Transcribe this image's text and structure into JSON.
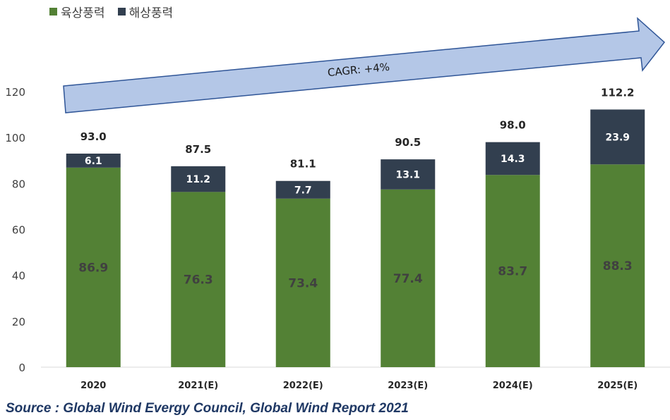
{
  "chart_data": {
    "type": "bar",
    "stacked": true,
    "categories": [
      "2020",
      "2021(E)",
      "2022(E)",
      "2023(E)",
      "2024(E)",
      "2025(E)"
    ],
    "series": [
      {
        "name": "육상풍력",
        "values": [
          86.9,
          76.3,
          73.4,
          77.4,
          83.7,
          88.3
        ],
        "color": "#538135"
      },
      {
        "name": "해상풍력",
        "values": [
          6.1,
          11.2,
          7.7,
          13.1,
          14.3,
          23.9
        ],
        "color": "#323f4f"
      }
    ],
    "totals": [
      "93.0",
      "87.5",
      "81.1",
      "90.5",
      "98.0",
      "112.2"
    ],
    "yticks": [
      0,
      20,
      40,
      60,
      80,
      100,
      120
    ],
    "ylim": [
      0,
      120
    ],
    "grid": false,
    "legend_position": "top-left",
    "annotation": "CAGR: +4%",
    "annotation_color": "#b4c7e7",
    "annotation_border": "#2f5597"
  },
  "source": "Source : Global Wind Evergy Council, Global Wind Report 2021"
}
